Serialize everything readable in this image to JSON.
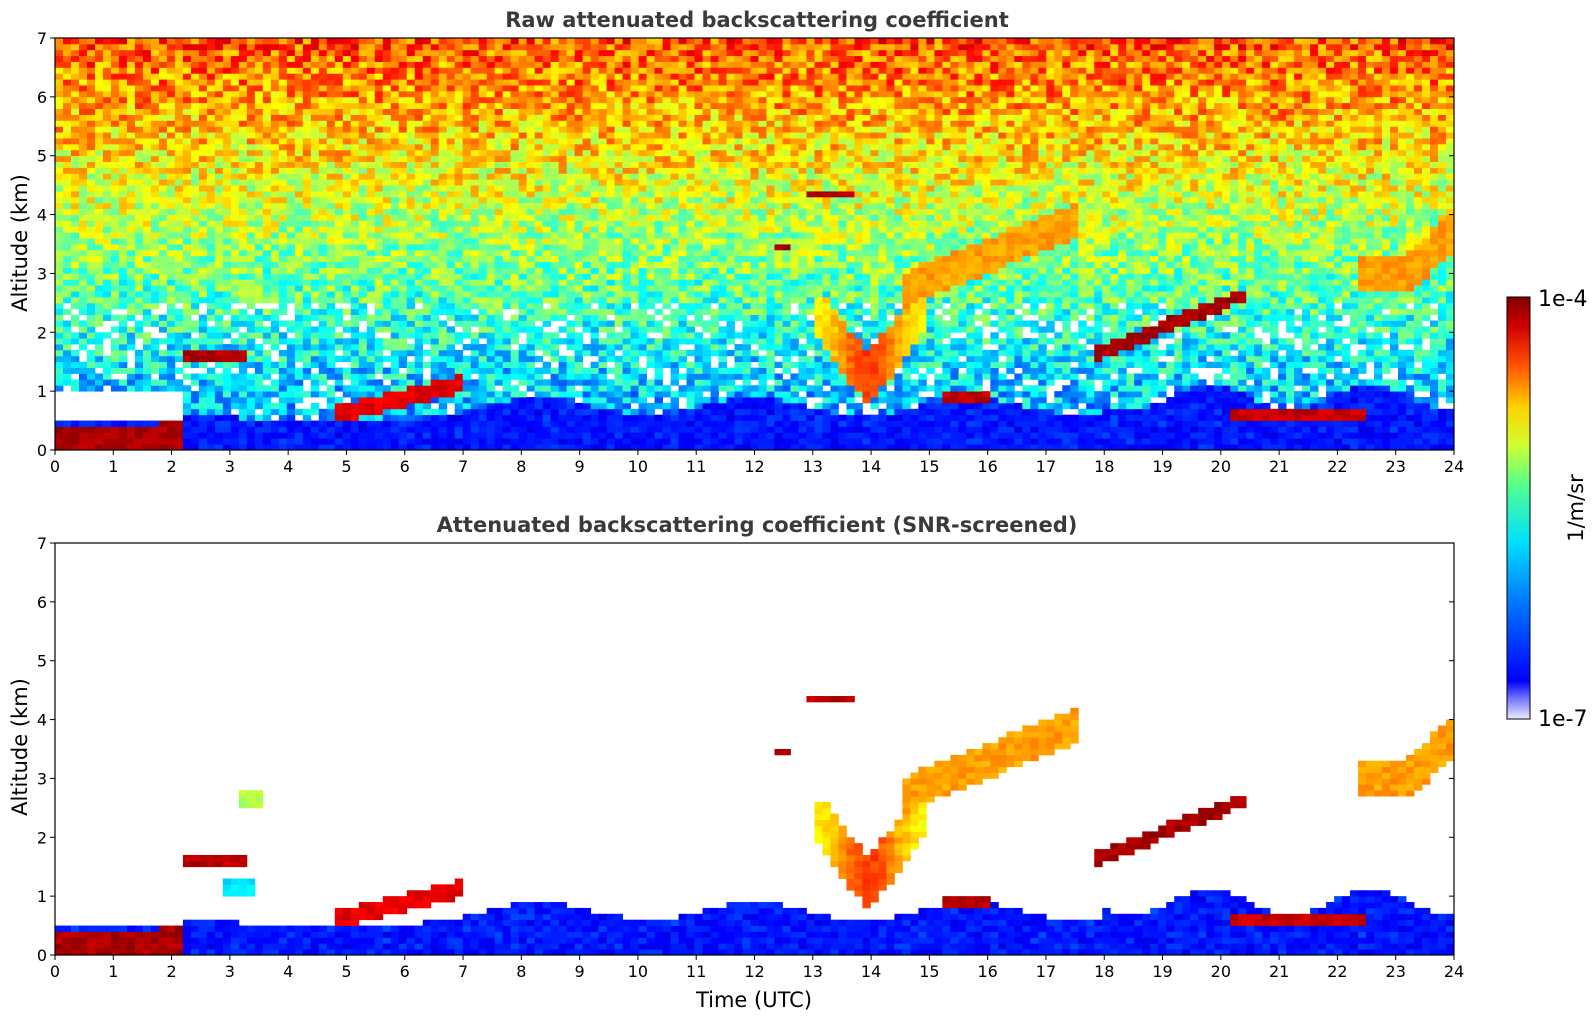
{
  "chart_data": [
    {
      "type": "heatmap",
      "title": "Raw attenuated backscattering coefficient",
      "xlabel": "",
      "ylabel": "Altitude (km)",
      "x_ticks": [
        "0",
        "1",
        "2",
        "3",
        "4",
        "5",
        "6",
        "7",
        "8",
        "9",
        "10",
        "11",
        "12",
        "13",
        "14",
        "15",
        "16",
        "17",
        "18",
        "19",
        "20",
        "21",
        "22",
        "23",
        "24"
      ],
      "y_ticks": [
        "0",
        "1",
        "2",
        "3",
        "4",
        "5",
        "6",
        "7"
      ],
      "xlim": [
        0,
        24
      ],
      "ylim": [
        0,
        7
      ],
      "colorscale": "jet",
      "screened": false
    },
    {
      "type": "heatmap",
      "title": "Attenuated backscattering coefficient (SNR-screened)",
      "xlabel": "Time (UTC)",
      "ylabel": "Altitude (km)",
      "x_ticks": [
        "0",
        "1",
        "2",
        "3",
        "4",
        "5",
        "6",
        "7",
        "8",
        "9",
        "10",
        "11",
        "12",
        "13",
        "14",
        "15",
        "16",
        "17",
        "18",
        "19",
        "20",
        "21",
        "22",
        "23",
        "24"
      ],
      "y_ticks": [
        "0",
        "1",
        "2",
        "3",
        "4",
        "5",
        "6",
        "7"
      ],
      "xlim": [
        0,
        24
      ],
      "ylim": [
        0,
        7
      ],
      "colorscale": "jet",
      "screened": true
    }
  ],
  "colorbar": {
    "label": "1/m/sr",
    "max_label": "1e-4",
    "min_label": "1e-7",
    "colors": [
      "#e8e8f8",
      "#0000ff",
      "#0080ff",
      "#00d8ff",
      "#40ffb0",
      "#c0ff40",
      "#ffd000",
      "#ff6000",
      "#e00000",
      "#800000"
    ]
  }
}
